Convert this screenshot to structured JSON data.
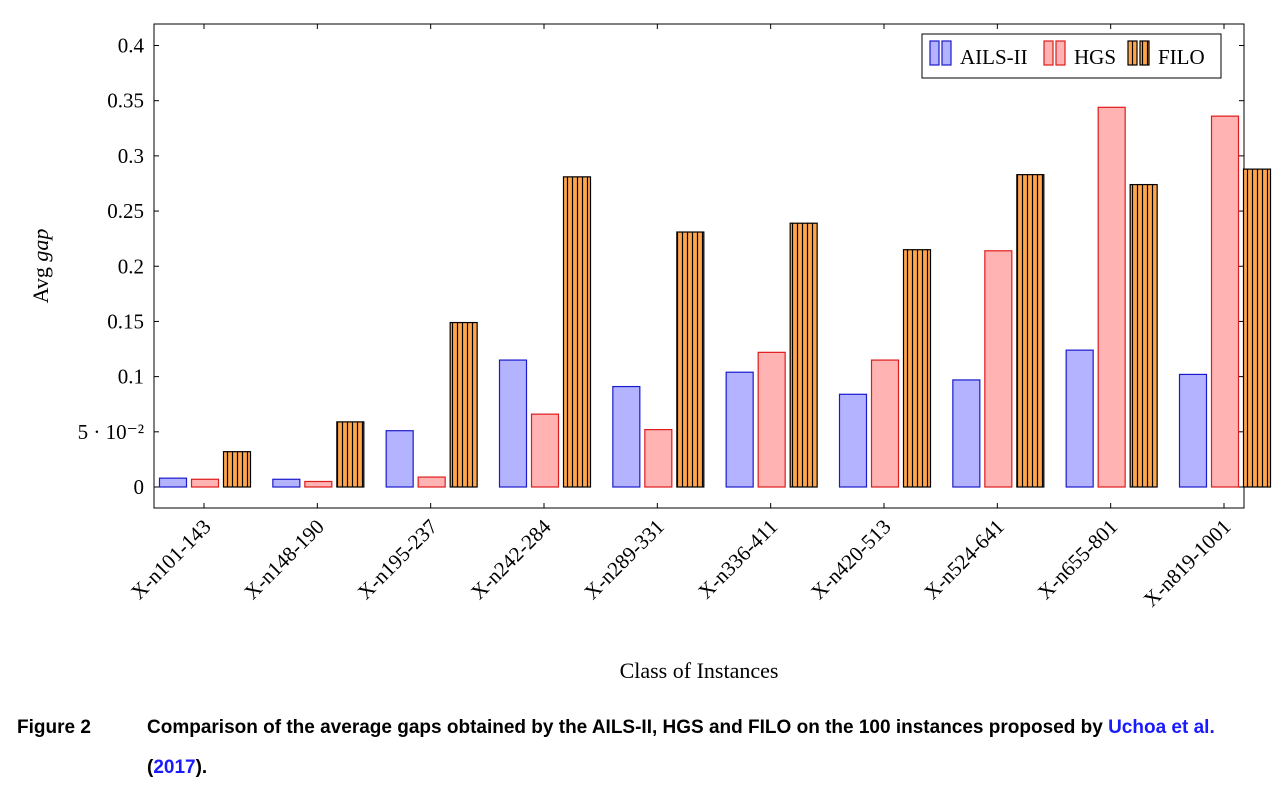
{
  "chart_data": {
    "type": "bar",
    "xlabel": "Class of Instances",
    "ylabel_prefix": "Avg",
    "ylabel_italic": "gap",
    "ylim": [
      0,
      0.42
    ],
    "yticks": [
      {
        "value": 0,
        "label": "0"
      },
      {
        "value": 0.05,
        "label": "5 · 10⁻²"
      },
      {
        "value": 0.1,
        "label": "0.1"
      },
      {
        "value": 0.15,
        "label": "0.15"
      },
      {
        "value": 0.2,
        "label": "0.2"
      },
      {
        "value": 0.25,
        "label": "0.25"
      },
      {
        "value": 0.3,
        "label": "0.3"
      },
      {
        "value": 0.35,
        "label": "0.35"
      },
      {
        "value": 0.4,
        "label": "0.4"
      }
    ],
    "categories": [
      "X-n101-143",
      "X-n148-190",
      "X-n195-237",
      "X-n242-284",
      "X-n289-331",
      "X-n336-411",
      "X-n420-513",
      "X-n524-641",
      "X-n655-801",
      "X-n819-1001"
    ],
    "legend_position": "top-right",
    "grid": false,
    "series": [
      {
        "name": "AILS-II",
        "fill": "#b3b3ff",
        "stroke": "#1a1acc",
        "pattern": "none",
        "values": [
          0.008,
          0.007,
          0.051,
          0.115,
          0.091,
          0.104,
          0.084,
          0.097,
          0.124,
          0.102
        ]
      },
      {
        "name": "HGS",
        "fill": "#ffb3b3",
        "stroke": "#e01b1b",
        "pattern": "none",
        "values": [
          0.007,
          0.005,
          0.009,
          0.066,
          0.052,
          0.122,
          0.115,
          0.214,
          0.344,
          0.336
        ]
      },
      {
        "name": "FILO",
        "fill": "#ffa64d",
        "stroke": "#000000",
        "pattern": "vertical-lines",
        "values": [
          0.032,
          0.059,
          0.149,
          0.281,
          0.231,
          0.239,
          0.215,
          0.283,
          0.274,
          0.288
        ]
      }
    ]
  },
  "caption": {
    "label": "Figure 2",
    "text_main": "Comparison of the average gaps obtained by the AILS-II, HGS and FILO on the 100 instances proposed by ",
    "cite_author": "Uchoa et al.",
    "cite_open": " (",
    "cite_year": "2017",
    "cite_close": ")."
  }
}
